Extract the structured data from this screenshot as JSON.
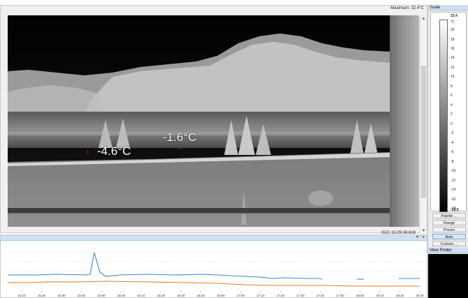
{
  "viewer": {
    "maximum_label": "Maximum: 32.4°C",
    "timestamp": "IS21    15:25:06.818",
    "spots": [
      {
        "label": "-4.6°C"
      },
      {
        "label": "-1.6°C"
      }
    ]
  },
  "scale": {
    "header": "Scale",
    "max": "23.4",
    "unit": "°C",
    "ticks": [
      "20",
      "18",
      "16",
      "14",
      "12",
      "10",
      "8",
      "6",
      "4",
      "2",
      "0",
      "-2",
      "-4",
      "-6",
      "-8",
      "-10",
      "-12",
      "-14",
      "-16",
      "-18"
    ],
    "min": "-19.9",
    "buttons": {
      "palette": "Palette ...",
      "range": "Range",
      "preset": "Preset",
      "auto": "Auto",
      "custom": "Custom ..."
    }
  },
  "view_finder": {
    "header": "View Finder"
  },
  "graph": {
    "pin_icon": "pin-icon",
    "close_icon": "close-icon",
    "x_ticks": [
      "15:10",
      "15:20",
      "15:30",
      "15:40",
      "15:50",
      "16:00",
      "16:10",
      "16:20",
      "16:30",
      "16:40",
      "16:50",
      "17:00",
      "17:10",
      "17:20",
      "17:30",
      "17:40",
      "17:50",
      "18:00",
      "18:10",
      "18:20",
      "18:30"
    ],
    "colors": {
      "series_max": "#3d86c6",
      "series_spot": "#e07b2c",
      "grid": "#b0b0b0"
    }
  }
}
